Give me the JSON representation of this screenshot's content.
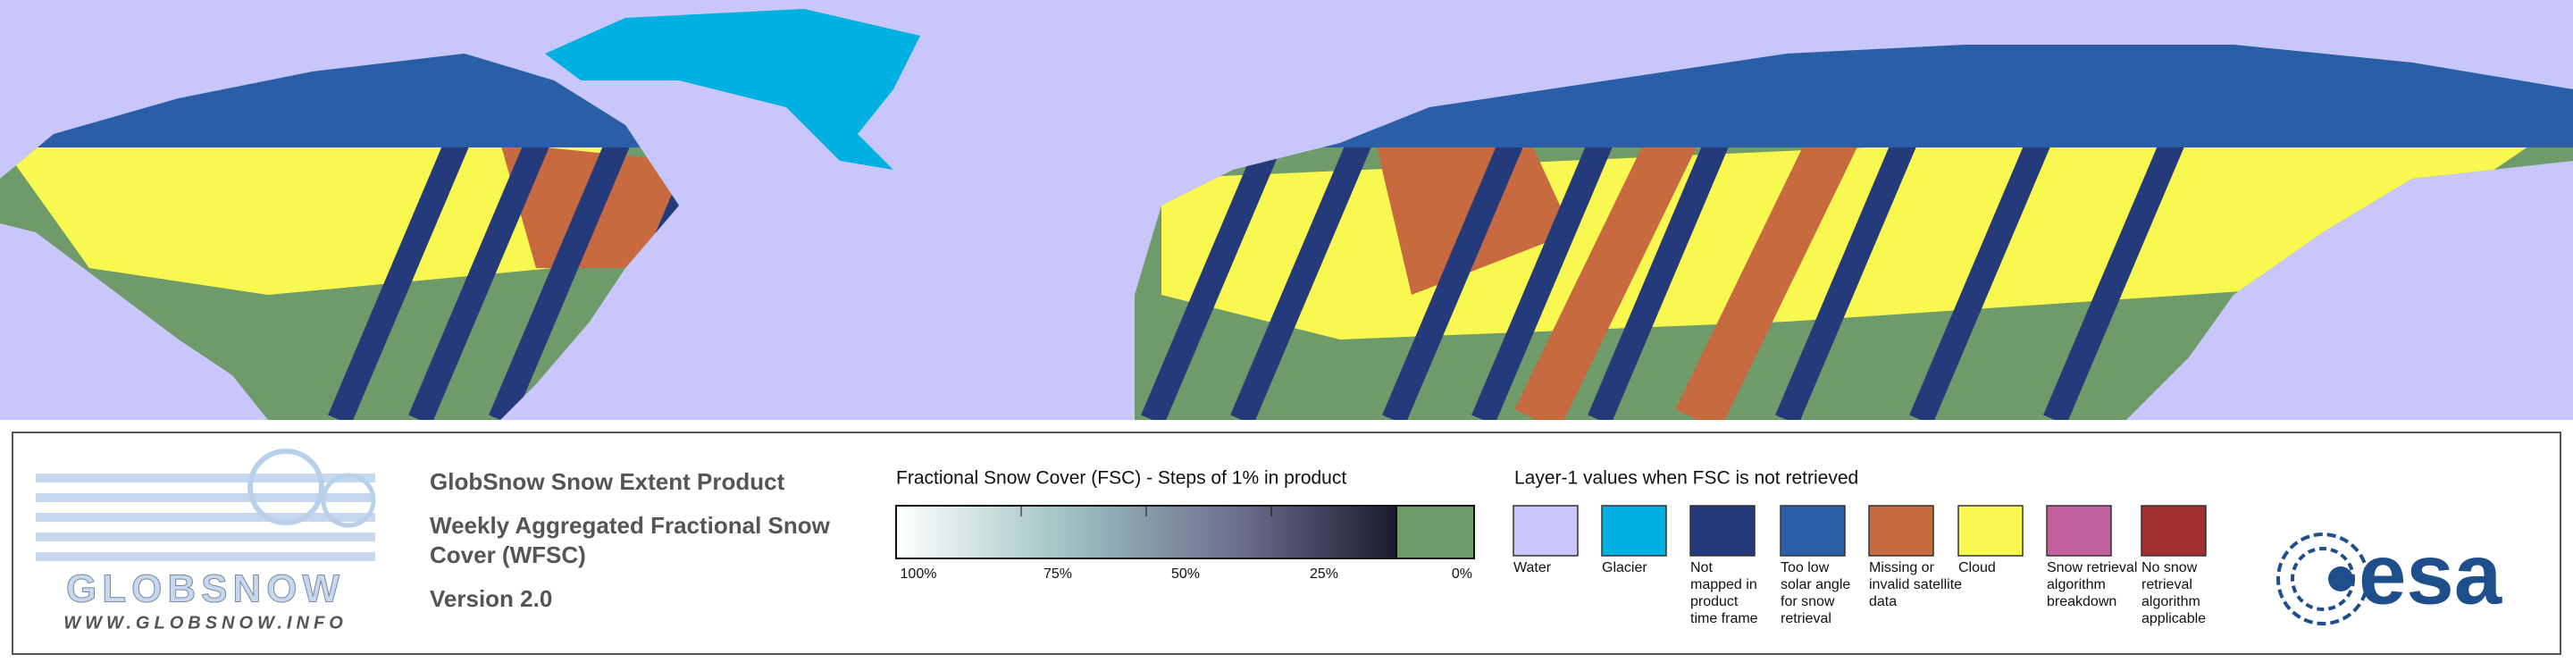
{
  "logo": {
    "name": "GLOBSNOW",
    "url": "WWW.GLOBSNOW.INFO"
  },
  "product": {
    "title": "GlobSnow Snow Extent Product",
    "subtitle_lines": [
      "Weekly Aggregated Fractional Snow",
      "Cover (WFSC)"
    ],
    "version": "Version 2.0"
  },
  "colorbar": {
    "title": "Fractional Snow Cover (FSC) - Steps of 1% in product",
    "ticks": [
      "100%",
      "75%",
      "50%",
      "25%",
      "0%"
    ]
  },
  "layer1": {
    "title": "Layer-1 values when FSC is not retrieved",
    "items": [
      {
        "color": "#c8c6fa",
        "lines": [
          "Water"
        ]
      },
      {
        "color": "#00b0e0",
        "lines": [
          "Glacier"
        ]
      },
      {
        "color": "#253a7a",
        "lines": [
          "Not",
          "mapped in",
          "product",
          "time frame"
        ]
      },
      {
        "color": "#2a5fa8",
        "lines": [
          "Too low",
          "solar angle",
          "for snow",
          "retrieval"
        ]
      },
      {
        "color": "#c86a40",
        "lines": [
          "Missing or",
          "invalid satellite",
          "data"
        ]
      },
      {
        "color": "#f8f850",
        "lines": [
          "Cloud"
        ]
      },
      {
        "color": "#c0609c",
        "lines": [
          "Snow retrieval",
          "algorithm",
          "breakdown"
        ]
      },
      {
        "color": "#a03030",
        "lines": [
          "No snow",
          "retrieval",
          "algorithm",
          "applicable"
        ]
      }
    ]
  },
  "agency": {
    "name": "esa"
  }
}
